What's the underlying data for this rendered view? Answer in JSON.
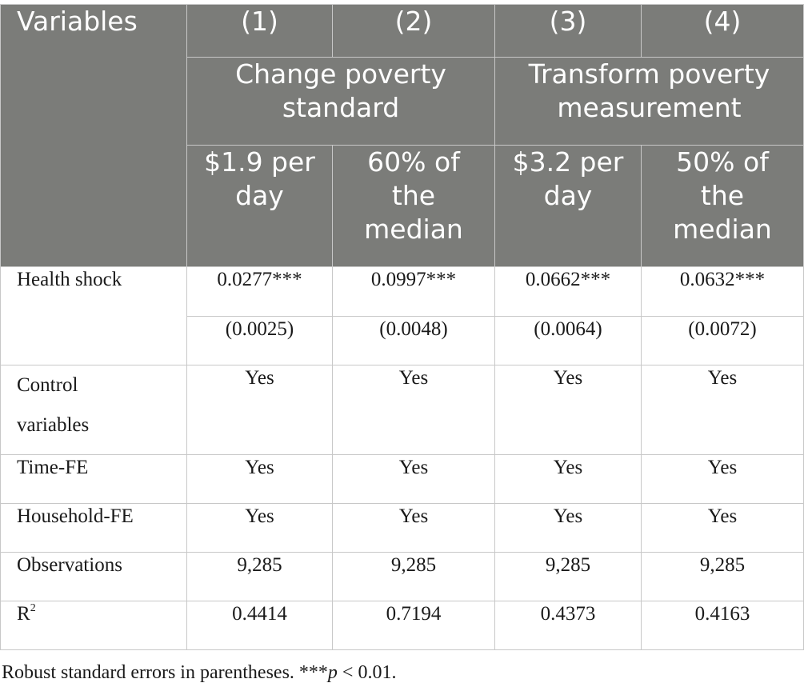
{
  "header": {
    "variables_label": "Variables",
    "col_numbers": [
      "(1)",
      "(2)",
      "(3)",
      "(4)"
    ],
    "groups": [
      "Change poverty standard",
      "Transform poverty measurement"
    ],
    "sub_headers": [
      [
        "$1.9 per",
        "day"
      ],
      [
        "60% of",
        "the",
        "median"
      ],
      [
        "$3.2 per",
        "day"
      ],
      [
        "50% of",
        "the",
        "median"
      ]
    ]
  },
  "rows": {
    "health_shock": {
      "label": "Health shock",
      "coef": [
        "0.0277***",
        "0.0997***",
        "0.0662***",
        "0.0632***"
      ],
      "se": [
        "(0.0025)",
        "(0.0048)",
        "(0.0064)",
        "(0.0072)"
      ]
    },
    "control": {
      "label_line1": "Control",
      "label_line2": "variables",
      "values": [
        "Yes",
        "Yes",
        "Yes",
        "Yes"
      ]
    },
    "time_fe": {
      "label": "Time-FE",
      "values": [
        "Yes",
        "Yes",
        "Yes",
        "Yes"
      ]
    },
    "household_fe": {
      "label": "Household-FE",
      "values": [
        "Yes",
        "Yes",
        "Yes",
        "Yes"
      ]
    },
    "observations": {
      "label": "Observations",
      "values": [
        "9,285",
        "9,285",
        "9,285",
        "9,285"
      ]
    },
    "r2": {
      "label": "R",
      "label_sup": "2",
      "values": [
        "0.4414",
        "0.7194",
        "0.4373",
        "0.4163"
      ]
    }
  },
  "note": {
    "prefix": "Robust standard errors in parentheses. ***",
    "p_symbol": "p",
    "suffix": " < 0.01."
  }
}
